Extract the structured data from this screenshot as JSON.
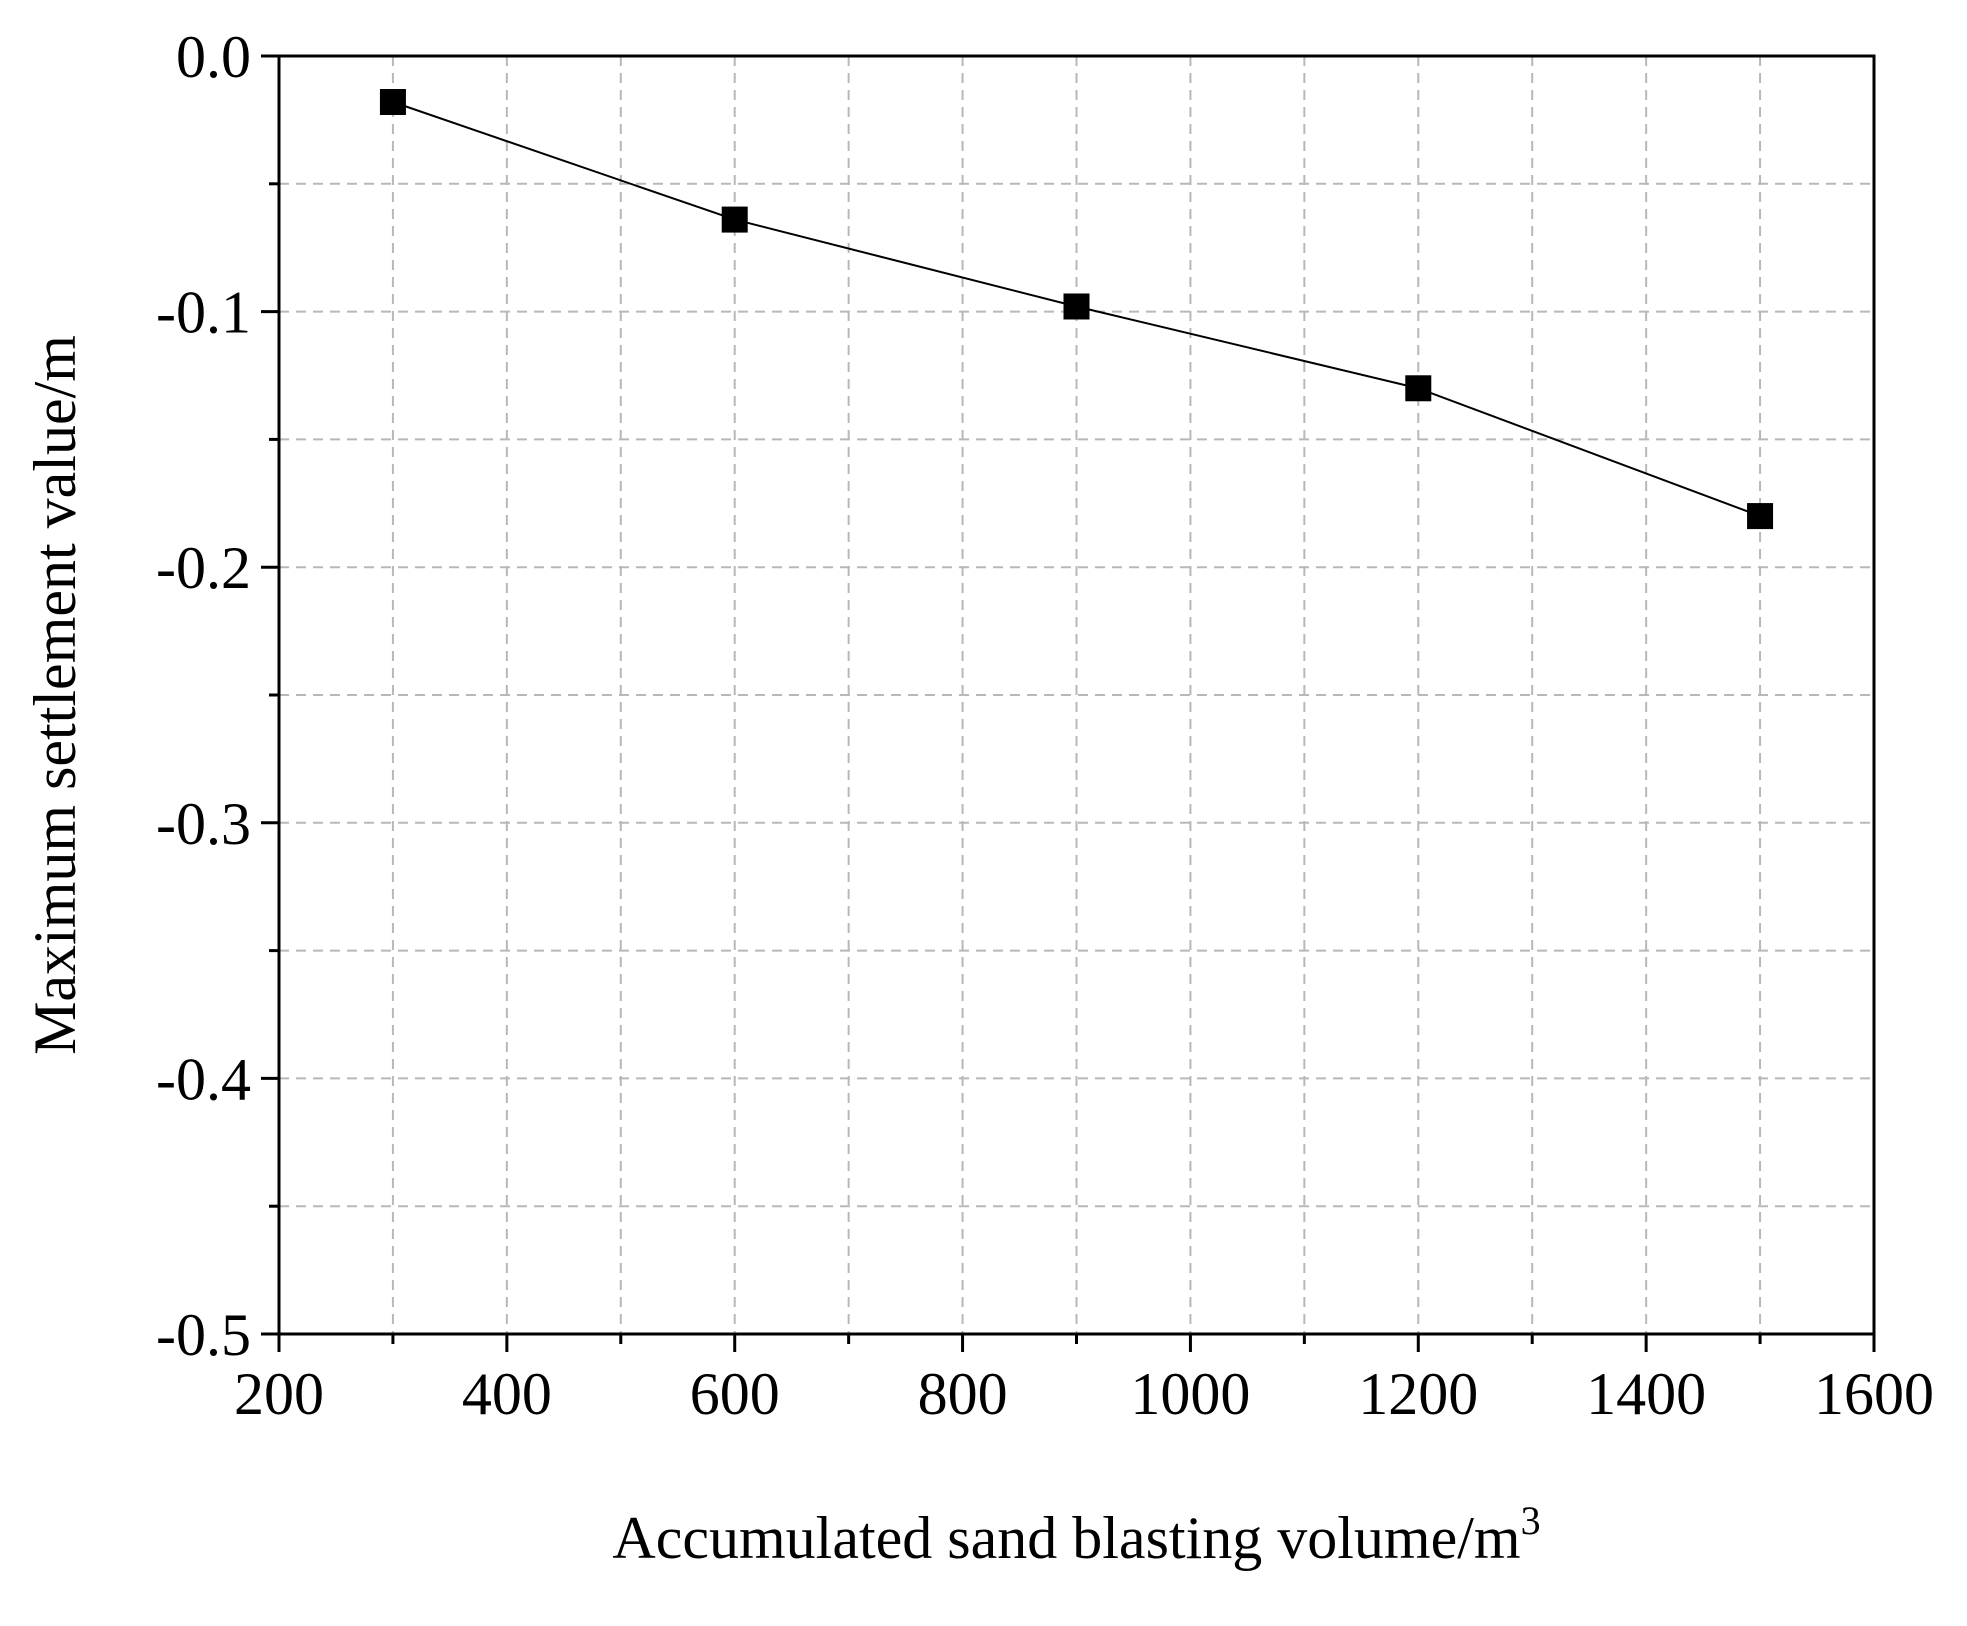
{
  "chart_data": {
    "type": "line",
    "title": "",
    "xlabel": "Accumulated sand blasting volume/m",
    "xlabel_superscript": "3",
    "ylabel": "Maximum settlement value/m",
    "xlim": [
      200,
      1600
    ],
    "ylim": [
      -0.5,
      0.0
    ],
    "x_ticks": [
      200,
      400,
      600,
      800,
      1000,
      1200,
      1400,
      1600
    ],
    "x_tick_labels": [
      "200",
      "400",
      "600",
      "800",
      "1000",
      "1200",
      "1400",
      "1600"
    ],
    "x_minor_ticks": [
      300,
      500,
      700,
      900,
      1100,
      1300,
      1500
    ],
    "y_ticks": [
      0.0,
      -0.1,
      -0.2,
      -0.3,
      -0.4,
      -0.5
    ],
    "y_tick_labels": [
      "0.0",
      "-0.1",
      "-0.2",
      "-0.3",
      "-0.4",
      "-0.5"
    ],
    "y_minor_ticks": [
      -0.05,
      -0.15,
      -0.25,
      -0.35,
      -0.45
    ],
    "grid": true,
    "grid_style": "dashed",
    "legend": false,
    "series": [
      {
        "marker": "square",
        "color": "#000000",
        "x": [
          300,
          600,
          900,
          1200,
          1500
        ],
        "y": [
          -0.018,
          -0.064,
          -0.098,
          -0.13,
          -0.18
        ]
      }
    ]
  }
}
